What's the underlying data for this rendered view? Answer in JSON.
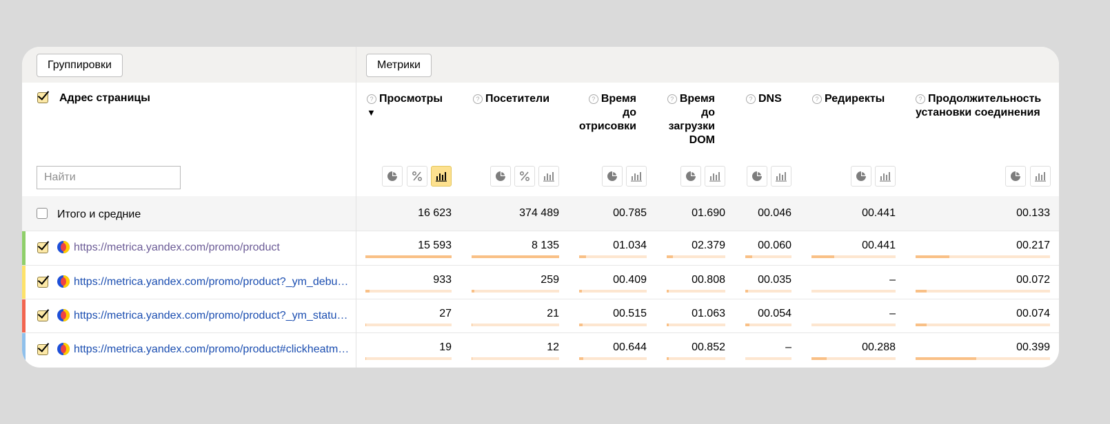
{
  "toolbar": {
    "groupings_label": "Группировки",
    "metrics_label": "Метрики"
  },
  "dimension": {
    "header": "Адрес страницы",
    "search_placeholder": "Найти",
    "header_checked": true
  },
  "columns": [
    {
      "label_lines": [
        "Просмотры"
      ],
      "sort": "▼",
      "icons": [
        "pie-chart-icon",
        "percent-icon",
        "bar-chart-icon"
      ],
      "active_icon": "bar-chart-icon"
    },
    {
      "label_lines": [
        "Посетители"
      ],
      "icons": [
        "pie-chart-icon",
        "percent-icon",
        "bar-chart-icon"
      ]
    },
    {
      "label_lines": [
        "Время",
        "до",
        "отрисовки"
      ],
      "icons": [
        "pie-chart-icon",
        "bar-chart-icon"
      ]
    },
    {
      "label_lines": [
        "Время",
        "до",
        "загрузки",
        "DOM"
      ],
      "icons": [
        "pie-chart-icon",
        "bar-chart-icon"
      ]
    },
    {
      "label_lines": [
        "DNS"
      ],
      "icons": [
        "pie-chart-icon",
        "bar-chart-icon"
      ]
    },
    {
      "label_lines": [
        "Редиректы"
      ],
      "icons": [
        "pie-chart-icon",
        "bar-chart-icon"
      ]
    },
    {
      "label_lines": [
        "Продолжительность",
        "установки соединения"
      ],
      "icons": [
        "pie-chart-icon",
        "bar-chart-icon"
      ]
    }
  ],
  "totals": {
    "label": "Итого и средние",
    "checked": false,
    "values": [
      "16 623",
      "374 489",
      "00.785",
      "01.690",
      "00.046",
      "00.441",
      "00.133"
    ]
  },
  "rows": [
    {
      "url": "https://metrica.yandex.com/promo/product",
      "visited": true,
      "checked": true,
      "color": "#8fcf6a",
      "values": [
        "15 593",
        "8 135",
        "01.034",
        "02.379",
        "00.060",
        "00.441",
        "00.217"
      ],
      "fill": [
        1.0,
        1.0,
        0.1,
        0.1,
        0.15,
        0.27,
        0.25
      ]
    },
    {
      "url": "https://metrica.yandex.com/promo/product?_ym_debu…",
      "visited": false,
      "checked": true,
      "color": "#fde26a",
      "values": [
        "933",
        "259",
        "00.409",
        "00.808",
        "00.035",
        "–",
        "00.072"
      ],
      "fill": [
        0.05,
        0.03,
        0.04,
        0.04,
        0.06,
        0,
        0.08
      ]
    },
    {
      "url": "https://metrica.yandex.com/promo/product?_ym_statu…",
      "visited": false,
      "checked": true,
      "color": "#f26550",
      "values": [
        "27",
        "21",
        "00.515",
        "01.063",
        "00.054",
        "–",
        "00.074"
      ],
      "fill": [
        0.005,
        0.005,
        0.05,
        0.03,
        0.09,
        0,
        0.08
      ]
    },
    {
      "url": "https://metrica.yandex.com/promo/product#clickheatm…",
      "visited": false,
      "checked": true,
      "color": "#8fc0eb",
      "values": [
        "19",
        "12",
        "00.644",
        "00.852",
        "–",
        "00.288",
        "00.399"
      ],
      "fill": [
        0.005,
        0.005,
        0.06,
        0.03,
        0,
        0.18,
        0.45
      ]
    }
  ],
  "accent_colors": {
    "active_icon_bg": "#fde18f",
    "bar_fill": "#f9c086",
    "bar_track": "#fde6d0",
    "link": "#1a4db0"
  }
}
